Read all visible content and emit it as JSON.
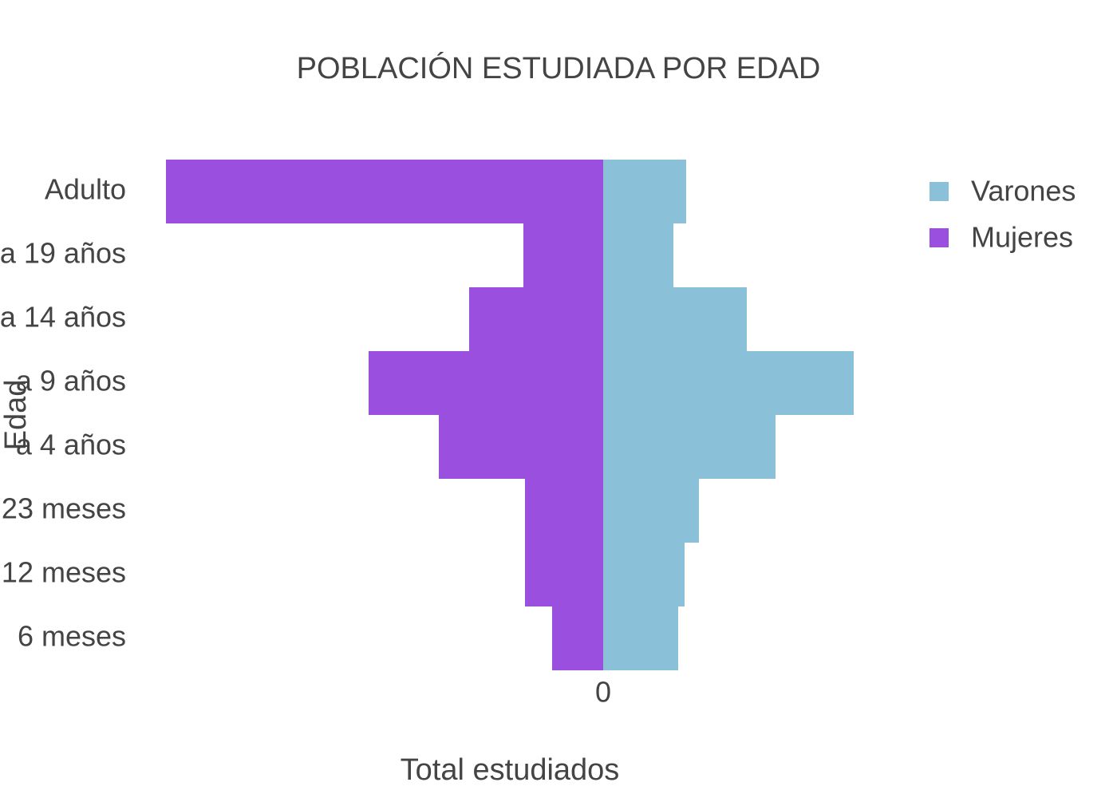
{
  "chart_data": {
    "type": "bar",
    "orientation": "horizontal",
    "barmode": "overlay",
    "title": "POBLACIÓN ESTUDIADA POR EDAD",
    "xlabel": "Total estudiados",
    "ylabel": "Edad",
    "categories": [
      "Adulto",
      "a 19 años",
      "a 14 años",
      "a 9 años",
      "a 4 años",
      "23 meses",
      "12 meses",
      "6 meses"
    ],
    "series": [
      {
        "name": "Varones",
        "color": "#8bc1d8",
        "values": [
          52,
          44,
          90,
          157,
          108,
          60,
          51,
          47
        ]
      },
      {
        "name": "Mujeres",
        "color": "#9a4fdf",
        "values": [
          -274,
          -50,
          -84,
          -147,
          -103,
          -49,
          -49,
          -32
        ]
      }
    ],
    "xlim": [
      -288,
      172
    ],
    "xticks": [
      0
    ],
    "grid": false,
    "legend": "upper right"
  }
}
